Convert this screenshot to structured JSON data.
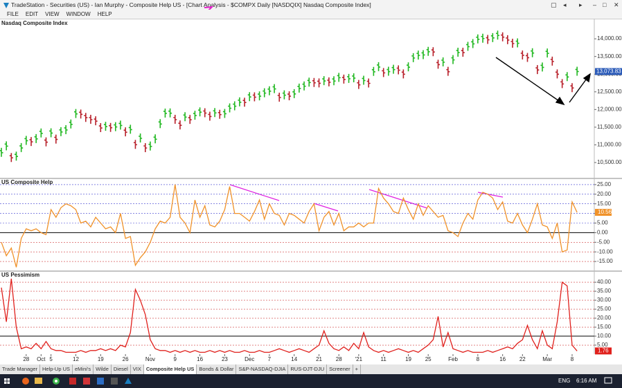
{
  "window": {
    "title": "TradeStation - Securities (US) - Ian Murphy - Composite Help US - [Chart Analysis - $COMPX Daily [NASDQIX] Nasdaq Composite Index]",
    "menu": [
      "FILE",
      "EDIT",
      "VIEW",
      "WINDOW",
      "HELP"
    ],
    "tabs": [
      "Trade Manager",
      "Help-Up US",
      "eMini's",
      "Wilde",
      "Diesel",
      "VIX",
      "Composite Help US",
      "Bonds & Dollar",
      "S&P-NASDAQ-DJIA",
      "RUS-DJT-DJU",
      "Screener",
      "+"
    ],
    "active_tab": 6,
    "taskbar": {
      "language": "ENG",
      "time": "6:16 AM"
    }
  },
  "chart_data": [
    {
      "type": "price_bars",
      "title": "Nasdaq Composite Index",
      "up_color": "#22b822",
      "down_color": "#b8202a",
      "last_color": "#2a5ab8",
      "ylim": [
        10050,
        14550
      ],
      "yticks": [
        {
          "value": 10500,
          "label": "10,500.00"
        },
        {
          "value": 11000,
          "label": "11,000.00"
        },
        {
          "value": 11500,
          "label": "11,500.00"
        },
        {
          "value": 12000,
          "label": "12,000.00"
        },
        {
          "value": 12500,
          "label": "12,500.00"
        },
        {
          "value": 13000,
          "label": "13,000.00"
        },
        {
          "value": 13500,
          "label": "13,500.00"
        },
        {
          "value": 14000,
          "label": "14,000.00"
        }
      ],
      "values": [
        10778,
        10963,
        10633,
        10672,
        10913,
        11117,
        11085,
        11168,
        11326,
        11075,
        11332,
        11154,
        11364,
        11420,
        11580,
        11876,
        11863,
        11768,
        11713,
        11671,
        11478,
        11516,
        11484,
        11506,
        11548,
        11358,
        11431,
        11004,
        11185,
        10911,
        10957,
        11160,
        11590,
        11890,
        11895,
        11713,
        11553,
        11786,
        11710,
        11829,
        11924,
        11899,
        11802,
        11904,
        11855,
        11880,
        12036,
        12094,
        12206,
        12198,
        12355,
        12349,
        12377,
        12464,
        12519,
        12582,
        12339,
        12405,
        12378,
        12440,
        12595,
        12658,
        12764,
        12755,
        12742,
        12807,
        12771,
        12805,
        12899,
        12850,
        12870,
        12888,
        12698,
        12819,
        12740,
        13067,
        13202,
        13036,
        13072,
        13128,
        13112,
        12998,
        13197,
        13457,
        13530,
        13543,
        13635,
        13626,
        13270,
        13337,
        13070,
        13403,
        13612,
        13610,
        13777,
        13856,
        13987,
        14007,
        13972,
        14025,
        14095,
        14047,
        13965,
        13865,
        13874,
        13533,
        13465,
        13597,
        13119,
        13192,
        13588,
        13359,
        12998,
        12723,
        12920,
        12609,
        13073.83
      ],
      "last_value_label": "13,073.83"
    },
    {
      "type": "line",
      "title": "US Composite Help",
      "color": "#f0922a",
      "grid": true,
      "grid_color_above": "#3a3ad0",
      "grid_color_below": "#d03a3a",
      "ylim": [
        -20,
        28.2
      ],
      "yticks": [
        {
          "value": -15,
          "label": "-15.00"
        },
        {
          "value": -10,
          "label": "-10.00"
        },
        {
          "value": -5,
          "label": "-5.00"
        },
        {
          "value": 0,
          "label": "0.00"
        },
        {
          "value": 5,
          "label": "5.00"
        },
        {
          "value": 10,
          "label": "10.00"
        },
        {
          "value": 15,
          "label": "15.00"
        },
        {
          "value": 20,
          "label": "20.00"
        },
        {
          "value": 25,
          "label": "25.00"
        }
      ],
      "values": [
        -5,
        -12,
        -8,
        -18,
        -3,
        2,
        1,
        2,
        0,
        -1,
        12,
        8,
        13,
        15,
        14,
        12,
        5,
        6,
        3,
        8,
        5,
        2,
        3,
        0,
        10,
        -3,
        -2,
        -17,
        -13,
        -10,
        -5,
        2,
        6,
        5,
        8,
        25,
        8,
        5,
        0,
        17,
        8,
        14,
        4,
        3,
        6,
        12,
        24,
        10,
        10,
        8,
        6,
        11,
        17,
        7,
        15,
        10,
        9,
        4,
        10,
        9,
        7,
        5,
        11,
        15,
        1,
        8,
        11,
        4,
        10,
        1,
        3,
        3,
        5,
        3,
        5,
        5,
        23,
        18,
        15,
        11,
        10,
        18,
        12,
        7,
        15,
        9,
        14,
        11,
        8,
        9,
        1,
        0,
        -2,
        5,
        10,
        7,
        17,
        21,
        20,
        18,
        12,
        16,
        6,
        5,
        10,
        4,
        0,
        7,
        15,
        4,
        3,
        -3,
        5,
        -10,
        -9,
        16,
        10.56
      ]
    },
    {
      "type": "line",
      "title": "US Pessimism",
      "color": "#e0201c",
      "grid": true,
      "grid_color": "#d03a3a",
      "reference_lines": [
        10
      ],
      "ylim": [
        0,
        46.2
      ],
      "yticks": [
        {
          "value": 5,
          "label": "5.00"
        },
        {
          "value": 10,
          "label": "10.00"
        },
        {
          "value": 15,
          "label": "15.00"
        },
        {
          "value": 20,
          "label": "20.00"
        },
        {
          "value": 25,
          "label": "25.00"
        },
        {
          "value": 30,
          "label": "30.00"
        },
        {
          "value": 35,
          "label": "35.00"
        },
        {
          "value": 40,
          "label": "40.00"
        }
      ],
      "categories": [
        null,
        null,
        null,
        null,
        null,
        "28",
        null,
        null,
        "Oct",
        null,
        "5",
        null,
        null,
        null,
        null,
        "12",
        null,
        null,
        null,
        null,
        "19",
        null,
        null,
        null,
        null,
        "26",
        null,
        null,
        null,
        null,
        "Nov",
        null,
        null,
        null,
        null,
        "9",
        null,
        null,
        null,
        null,
        "16",
        null,
        null,
        null,
        null,
        "23",
        null,
        null,
        null,
        null,
        "Dec",
        null,
        null,
        null,
        "7",
        null,
        null,
        null,
        null,
        "14",
        null,
        null,
        null,
        null,
        "21",
        null,
        null,
        null,
        "28",
        null,
        null,
        null,
        "'21",
        null,
        null,
        null,
        null,
        "11",
        null,
        null,
        null,
        null,
        "19",
        null,
        null,
        null,
        "25",
        null,
        null,
        null,
        null,
        "Feb",
        null,
        null,
        null,
        null,
        "8",
        null,
        null,
        null,
        null,
        "16",
        null,
        null,
        null,
        "22",
        null,
        null,
        null,
        null,
        "Mar",
        null,
        null,
        null,
        null,
        "8",
        null
      ],
      "values": [
        37,
        18,
        42,
        15,
        3,
        4,
        3,
        6,
        3,
        7,
        3,
        2,
        2,
        1,
        1,
        1,
        2,
        1,
        2,
        2,
        3,
        2,
        3,
        2,
        5,
        4,
        12,
        36,
        30,
        22,
        8,
        3,
        2,
        2,
        1,
        2,
        1,
        2,
        1,
        2,
        1,
        1,
        2,
        1,
        2,
        1,
        2,
        1,
        1,
        2,
        1,
        1,
        2,
        1,
        1,
        2,
        3,
        2,
        1,
        2,
        3,
        2,
        1,
        3,
        5,
        13,
        6,
        3,
        2,
        4,
        2,
        6,
        3,
        12,
        4,
        2,
        1,
        2,
        1,
        2,
        3,
        2,
        1,
        2,
        1,
        3,
        5,
        8,
        21,
        4,
        12,
        3,
        2,
        1,
        2,
        1,
        1,
        1,
        2,
        1,
        2,
        3,
        4,
        3,
        6,
        8,
        16,
        8,
        3,
        13,
        5,
        3,
        18,
        40,
        38,
        5,
        1.76
      ]
    }
  ]
}
